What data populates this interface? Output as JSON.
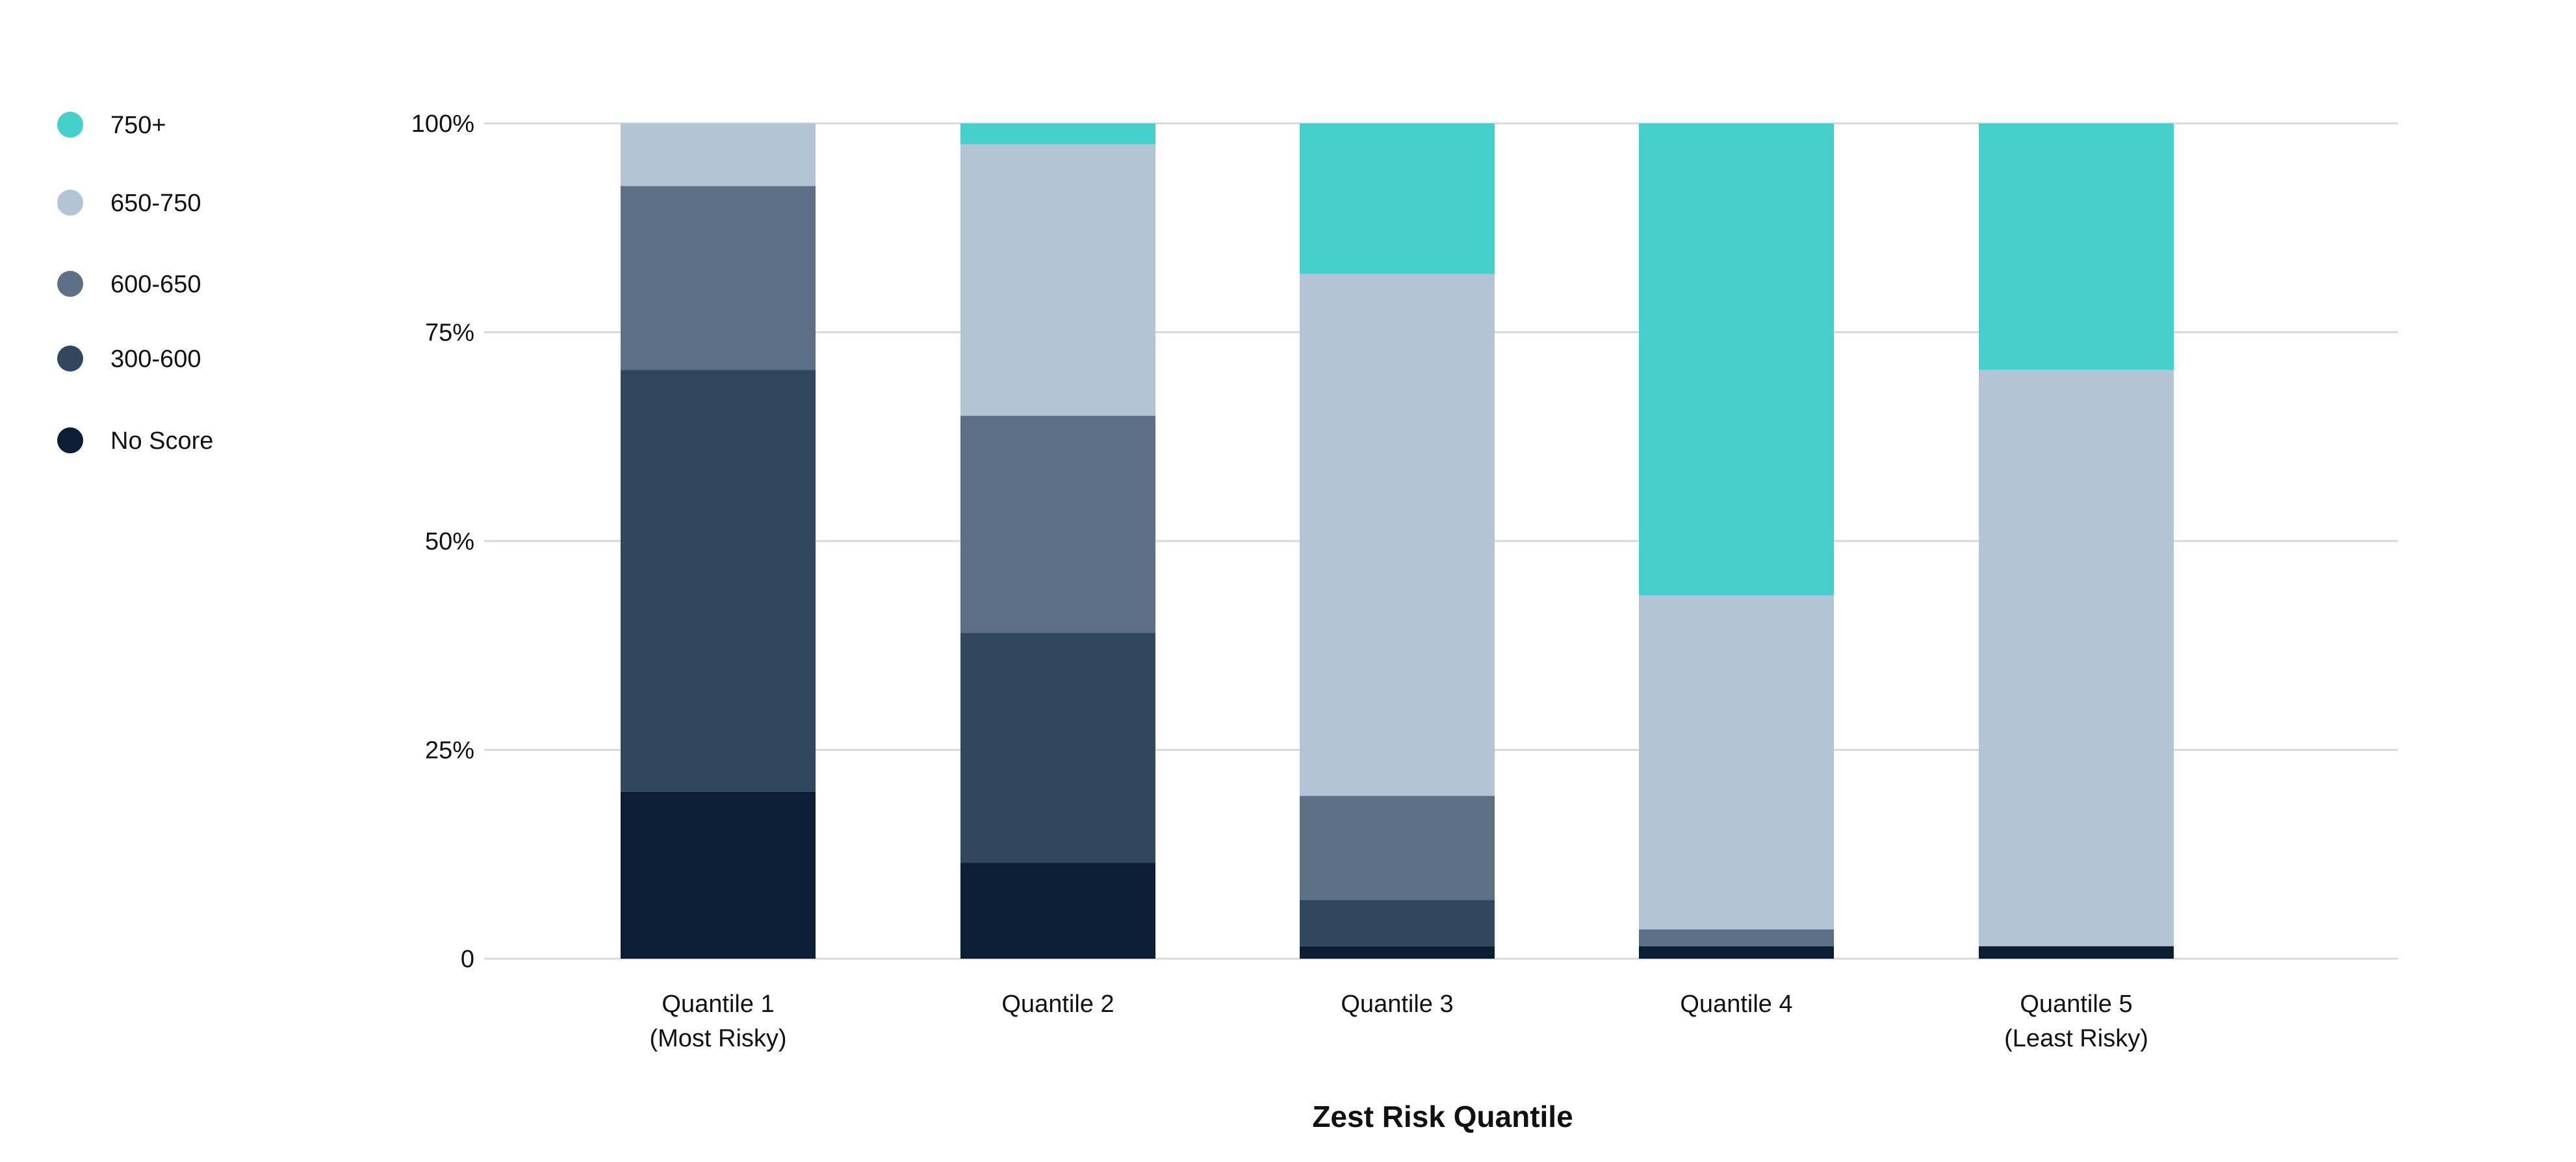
{
  "chart_data": {
    "type": "bar",
    "stacked": true,
    "normalized": true,
    "title": "",
    "xlabel": "Zest Risk Quantile",
    "ylabel": "",
    "ylim": [
      0,
      100
    ],
    "yticks": [
      {
        "value": 0,
        "label": "0"
      },
      {
        "value": 25,
        "label": "25%"
      },
      {
        "value": 50,
        "label": "50%"
      },
      {
        "value": 75,
        "label": "75%"
      },
      {
        "value": 100,
        "label": "100%"
      }
    ],
    "grid": true,
    "legend_position": "left",
    "categories": [
      {
        "line1": "Quantile 1",
        "line2": "(Most Risky)"
      },
      {
        "line1": "Quantile 2",
        "line2": ""
      },
      {
        "line1": "Quantile 3",
        "line2": ""
      },
      {
        "line1": "Quantile 4",
        "line2": ""
      },
      {
        "line1": "Quantile 5",
        "line2": "(Least Risky)"
      }
    ],
    "series": [
      {
        "name": "No Score",
        "color": "#0a1f33",
        "values": [
          20,
          11.5,
          1.5,
          1.5,
          1.5
        ]
      },
      {
        "name": "300-600",
        "color": "#31475d",
        "values": [
          50.5,
          27.5,
          5.5,
          0,
          0
        ]
      },
      {
        "name": "600-650",
        "color": "#5c7085",
        "values": [
          22,
          26,
          12.5,
          2,
          0
        ]
      },
      {
        "name": "650-750",
        "color": "#b3c4d6",
        "values": [
          7.5,
          32.5,
          62.5,
          40,
          69
        ]
      },
      {
        "name": "750+",
        "color": "#45d0cb",
        "values": [
          0,
          2.5,
          18,
          56.5,
          29.5
        ]
      }
    ],
    "legend_order": [
      "750+",
      "650-750",
      "600-650",
      "300-600",
      "No Score"
    ],
    "colors": {
      "grid": "#d6d8dc",
      "text": "#111111"
    }
  }
}
